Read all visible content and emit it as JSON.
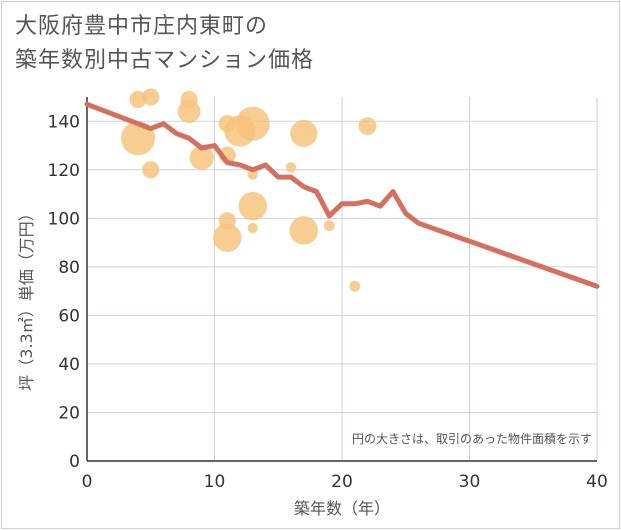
{
  "chart_data": {
    "type": "scatter",
    "title_line1": "大阪府豊中市庄内東町の",
    "title_line2": "築年数別中古マンション価格",
    "xlabel": "築年数（年）",
    "ylabel": "坪（3.3㎡）単価（万円）",
    "note": "円の大きさは、取引のあった物件面積を示す",
    "xlim": [
      0,
      40
    ],
    "ylim": [
      0,
      150
    ],
    "x_ticks": [
      0,
      10,
      20,
      30,
      40
    ],
    "y_ticks": [
      0,
      20,
      40,
      60,
      80,
      100,
      120,
      140
    ],
    "x_tick_labels": [
      "0",
      "10",
      "20",
      "30",
      "40"
    ],
    "y_tick_labels": [
      "0",
      "20",
      "40",
      "60",
      "80",
      "100",
      "120",
      "140"
    ],
    "colors": {
      "bubble": "#f5c27a",
      "line": "#d4705d",
      "grid": "#c9d6e2"
    },
    "scatter": [
      {
        "x": 4,
        "y": 133,
        "size": 2.0
      },
      {
        "x": 4,
        "y": 149,
        "size": 0.8
      },
      {
        "x": 5,
        "y": 150,
        "size": 0.8
      },
      {
        "x": 5,
        "y": 120,
        "size": 0.8
      },
      {
        "x": 8,
        "y": 149,
        "size": 0.8
      },
      {
        "x": 8,
        "y": 144,
        "size": 1.2
      },
      {
        "x": 9,
        "y": 125,
        "size": 1.3
      },
      {
        "x": 11,
        "y": 139,
        "size": 0.8
      },
      {
        "x": 11,
        "y": 126,
        "size": 0.8
      },
      {
        "x": 11,
        "y": 99,
        "size": 0.8
      },
      {
        "x": 11,
        "y": 92,
        "size": 1.6
      },
      {
        "x": 12,
        "y": 136,
        "size": 1.8
      },
      {
        "x": 13,
        "y": 139,
        "size": 2.0
      },
      {
        "x": 13,
        "y": 118,
        "size": 0.3
      },
      {
        "x": 13,
        "y": 105,
        "size": 1.6
      },
      {
        "x": 13,
        "y": 96,
        "size": 0.3
      },
      {
        "x": 16,
        "y": 121,
        "size": 0.3
      },
      {
        "x": 17,
        "y": 135,
        "size": 1.5
      },
      {
        "x": 17,
        "y": 95,
        "size": 1.6
      },
      {
        "x": 19,
        "y": 97,
        "size": 0.35
      },
      {
        "x": 21,
        "y": 72,
        "size": 0.35
      },
      {
        "x": 22,
        "y": 138,
        "size": 0.85
      }
    ],
    "trend": {
      "x": [
        0,
        5,
        6,
        7,
        8,
        9,
        10,
        11,
        12,
        13,
        14,
        15,
        16,
        17,
        18,
        19,
        20,
        21,
        22,
        23,
        24,
        25,
        26,
        40
      ],
      "y": [
        147,
        137,
        139,
        135,
        133,
        129,
        130,
        123,
        122,
        120,
        122,
        117,
        117,
        113,
        111,
        101,
        106,
        106,
        107,
        105,
        111,
        102,
        98,
        72
      ]
    }
  }
}
